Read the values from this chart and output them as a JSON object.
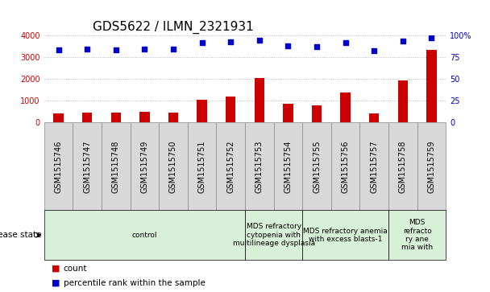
{
  "title": "GDS5622 / ILMN_2321931",
  "samples": [
    "GSM1515746",
    "GSM1515747",
    "GSM1515748",
    "GSM1515749",
    "GSM1515750",
    "GSM1515751",
    "GSM1515752",
    "GSM1515753",
    "GSM1515754",
    "GSM1515755",
    "GSM1515756",
    "GSM1515757",
    "GSM1515758",
    "GSM1515759"
  ],
  "counts": [
    430,
    460,
    440,
    480,
    450,
    1050,
    1200,
    2020,
    880,
    780,
    1380,
    430,
    1940,
    3320
  ],
  "percentiles": [
    83,
    84,
    83,
    84,
    84,
    91,
    92,
    94,
    88,
    87,
    91,
    82,
    93,
    97
  ],
  "ylim_left": [
    0,
    4000
  ],
  "ylim_right": [
    0,
    100
  ],
  "yticks_left": [
    0,
    1000,
    2000,
    3000,
    4000
  ],
  "ytick_labels_right": [
    "0",
    "25",
    "50",
    "75",
    "100%"
  ],
  "ytick_vals_right": [
    0,
    25,
    50,
    75,
    100
  ],
  "bar_color": "#cc0000",
  "dot_color": "#0000cc",
  "grid_color": "#aaaaaa",
  "bg_color": "#ffffff",
  "tick_bg_color": "#d8d8d8",
  "tick_border_color": "#888888",
  "disease_groups": [
    {
      "label": "control",
      "start": 0,
      "end": 7,
      "color": "#d8f0d8"
    },
    {
      "label": "MDS refractory\ncytopenia with\nmultilineage dysplasia",
      "start": 7,
      "end": 9,
      "color": "#d8f0d8"
    },
    {
      "label": "MDS refractory anemia\nwith excess blasts-1",
      "start": 9,
      "end": 12,
      "color": "#d8f0d8"
    },
    {
      "label": "MDS\nrefracto\nry ane\nmia with",
      "start": 12,
      "end": 14,
      "color": "#d8f0d8"
    }
  ],
  "xlabel_disease": "disease state",
  "legend_count_label": "count",
  "legend_pct_label": "percentile rank within the sample",
  "title_fontsize": 11,
  "tick_fontsize": 7,
  "label_fontsize": 7,
  "disease_fontsize": 6.5
}
